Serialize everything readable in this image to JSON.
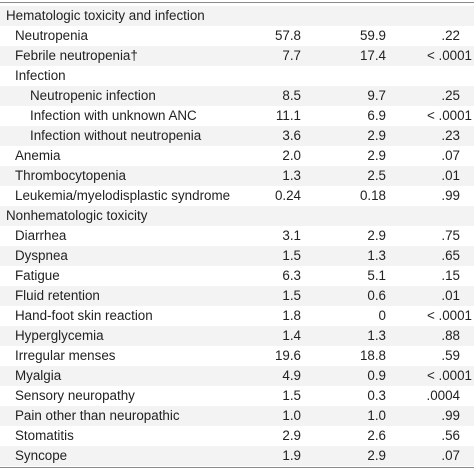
{
  "sections": [
    {
      "title": "Hematologic toxicity and infection",
      "rows": [
        {
          "label": "Neutropenia",
          "level": 1,
          "a": "57.8",
          "b": "59.9",
          "p": ".22"
        },
        {
          "label": "Febrile neutropenia†",
          "level": 1,
          "a": "7.7",
          "b": "17.4",
          "p": "< .0001"
        },
        {
          "label": "Infection",
          "level": 1,
          "a": "",
          "b": "",
          "p": ""
        },
        {
          "label": "Neutropenic infection",
          "level": 2,
          "a": "8.5",
          "b": "9.7",
          "p": ".25"
        },
        {
          "label": "Infection with unknown ANC",
          "level": 2,
          "a": "11.1",
          "b": "6.9",
          "p": "< .0001"
        },
        {
          "label": "Infection without neutropenia",
          "level": 2,
          "a": "3.6",
          "b": "2.9",
          "p": ".23"
        },
        {
          "label": "Anemia",
          "level": 1,
          "a": "2.0",
          "b": "2.9",
          "p": ".07"
        },
        {
          "label": "Thrombocytopenia",
          "level": 1,
          "a": "1.3",
          "b": "2.5",
          "p": ".01"
        },
        {
          "label": "Leukemia/myelodisplastic syndrome",
          "level": 1,
          "a": "0.24",
          "b": "0.18",
          "p": ".99"
        }
      ]
    },
    {
      "title": "Nonhematologic toxicity",
      "rows": [
        {
          "label": "Diarrhea",
          "level": 1,
          "a": "3.1",
          "b": "2.9",
          "p": ".75"
        },
        {
          "label": "Dyspnea",
          "level": 1,
          "a": "1.5",
          "b": "1.3",
          "p": ".65"
        },
        {
          "label": "Fatigue",
          "level": 1,
          "a": "6.3",
          "b": "5.1",
          "p": ".15"
        },
        {
          "label": "Fluid retention",
          "level": 1,
          "a": "1.5",
          "b": "0.6",
          "p": ".01"
        },
        {
          "label": "Hand-foot skin reaction",
          "level": 1,
          "a": "1.8",
          "b": "0",
          "p": "< .0001"
        },
        {
          "label": "Hyperglycemia",
          "level": 1,
          "a": "1.4",
          "b": "1.3",
          "p": ".88"
        },
        {
          "label": "Irregular menses",
          "level": 1,
          "a": "19.6",
          "b": "18.8",
          "p": ".59"
        },
        {
          "label": "Myalgia",
          "level": 1,
          "a": "4.9",
          "b": "0.9",
          "p": "< .0001"
        },
        {
          "label": "Sensory neuropathy",
          "level": 1,
          "a": "1.5",
          "b": "0.3",
          "p": ".0004"
        },
        {
          "label": "Pain other than neuropathic",
          "level": 1,
          "a": "1.0",
          "b": "1.0",
          "p": ".99"
        },
        {
          "label": "Stomatitis",
          "level": 1,
          "a": "2.9",
          "b": "2.6",
          "p": ".56"
        },
        {
          "label": "Syncope",
          "level": 1,
          "a": "1.9",
          "b": "2.9",
          "p": ".07"
        }
      ]
    }
  ]
}
